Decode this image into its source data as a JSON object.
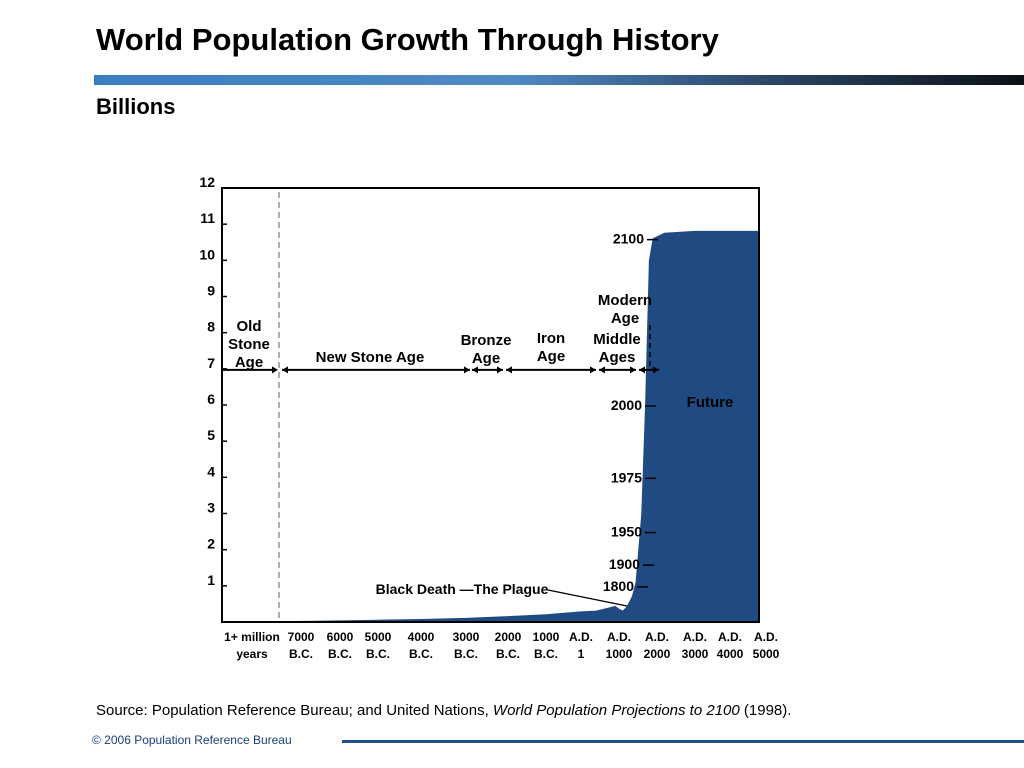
{
  "slide": {
    "title": "World Population Growth Through History",
    "subtitle": "Billions",
    "source_prefix": "Source: Population Reference Bureau; and United Nations, ",
    "source_italic": "World Population Projections to 2100",
    "source_suffix": " (1998).",
    "footer": "© 2006 Population Reference Bureau"
  },
  "colors": {
    "fill": "#1f4a82",
    "axis": "#000000",
    "grid_dashed": "#777777"
  },
  "chart_data": {
    "type": "area",
    "title": "World Population Growth Through History",
    "ylabel": "Billions",
    "ylim": [
      0,
      12
    ],
    "yticks": [
      1,
      2,
      3,
      4,
      5,
      6,
      7,
      8,
      9,
      10,
      11,
      12
    ],
    "x_tick_labels": [
      [
        "1+ million",
        "years"
      ],
      [
        "7000",
        "B.C."
      ],
      [
        "6000",
        "B.C."
      ],
      [
        "5000",
        "B.C."
      ],
      [
        "4000",
        "B.C."
      ],
      [
        "3000",
        "B.C."
      ],
      [
        "2000",
        "B.C."
      ],
      [
        "1000",
        "B.C."
      ],
      [
        "A.D.",
        "1"
      ],
      [
        "A.D.",
        "1000"
      ],
      [
        "A.D.",
        "2000"
      ],
      [
        "A.D.",
        "3000"
      ],
      [
        "A.D.",
        "4000"
      ],
      [
        "A.D.",
        "5000"
      ]
    ],
    "series": [
      {
        "values": [
          [
            0.0,
            0.0
          ],
          [
            1.4,
            0.02
          ],
          [
            2.0,
            0.03
          ],
          [
            3.0,
            0.05
          ],
          [
            4.0,
            0.07
          ],
          [
            5.0,
            0.1
          ],
          [
            6.0,
            0.15
          ],
          [
            7.0,
            0.2
          ],
          [
            7.6,
            0.25
          ],
          [
            8.0,
            0.28
          ],
          [
            8.4,
            0.3
          ],
          [
            8.7,
            0.38
          ],
          [
            8.9,
            0.43
          ],
          [
            9.0,
            0.35
          ],
          [
            9.1,
            0.3
          ],
          [
            9.2,
            0.4
          ],
          [
            9.35,
            0.7
          ],
          [
            9.45,
            1.1
          ],
          [
            9.6,
            3.0
          ],
          [
            9.7,
            6.0
          ],
          [
            9.8,
            10.0
          ],
          [
            9.9,
            10.6
          ],
          [
            10.2,
            10.75
          ],
          [
            11.0,
            10.8
          ],
          [
            12.98,
            10.8
          ]
        ]
      }
    ],
    "year_markers": [
      {
        "label": "2100",
        "value": 10.6
      },
      {
        "label": "2000",
        "value": 6.0
      },
      {
        "label": "1975",
        "value": 4.0
      },
      {
        "label": "1950",
        "value": 2.5
      },
      {
        "label": "1900",
        "value": 1.6
      },
      {
        "label": "1800",
        "value": 1.0
      }
    ],
    "eras": [
      {
        "name": "Old Stone Age",
        "lines": [
          "Old",
          "Stone",
          "Age"
        ]
      },
      {
        "name": "New Stone Age",
        "lines": [
          "New Stone Age"
        ]
      },
      {
        "name": "Bronze Age",
        "lines": [
          "Bronze",
          "Age"
        ]
      },
      {
        "name": "Iron Age",
        "lines": [
          "Iron",
          "Age"
        ]
      },
      {
        "name": "Middle Ages",
        "lines": [
          "Middle",
          "Ages"
        ]
      },
      {
        "name": "Modern Age",
        "lines": [
          "Modern",
          "Age"
        ]
      }
    ],
    "annotations": {
      "black_death": "Black Death —The Plague",
      "future": "Future"
    }
  }
}
